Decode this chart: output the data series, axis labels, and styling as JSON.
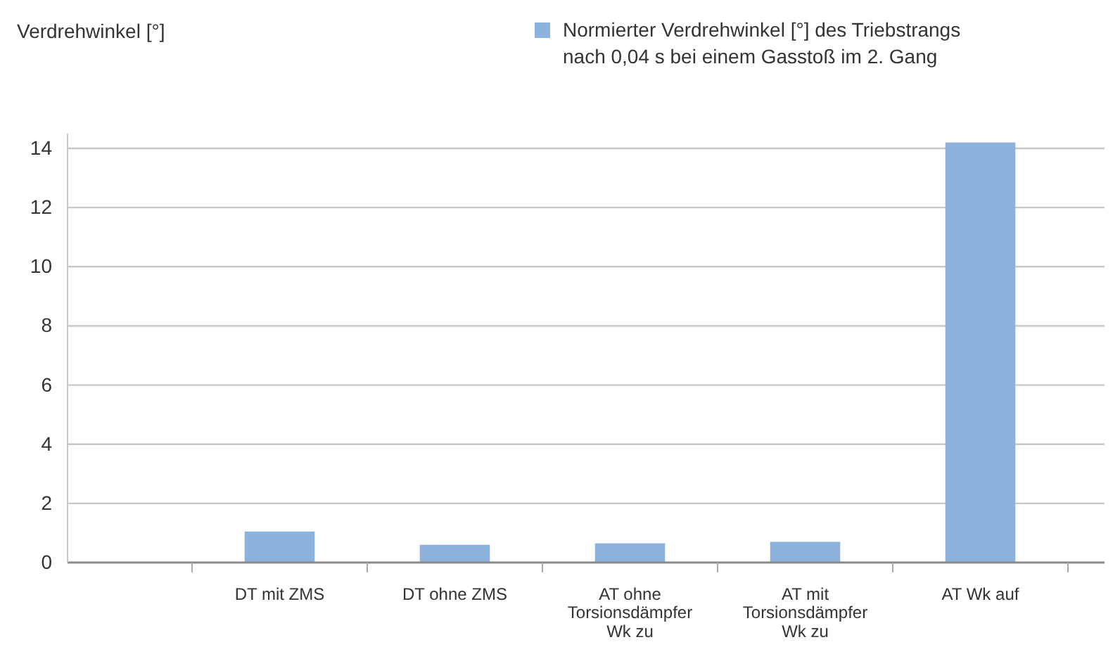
{
  "chart_data": {
    "type": "bar",
    "ylabel": "Verdrehwinkel [°]",
    "categories": [
      null,
      "DT mit ZMS",
      "DT ohne ZMS",
      "AT ohne Torsionsdämpfer Wk zu",
      "AT mit Torsionsdämpfer Wk zu",
      "AT Wk auf"
    ],
    "series": [
      {
        "name": "Normierter Verdrehwinkel [°] des Triebstrangs nach 0,04 s bei einem Gasstoß im 2. Gang",
        "color": "#8db3dc",
        "values": [
          null,
          1.05,
          0.6,
          0.65,
          0.7,
          14.2
        ]
      }
    ],
    "ylim": [
      0,
      14.5
    ],
    "yticks": [
      0,
      2,
      4,
      6,
      8,
      10,
      12,
      14
    ],
    "grid": "y",
    "legend": "top right"
  }
}
